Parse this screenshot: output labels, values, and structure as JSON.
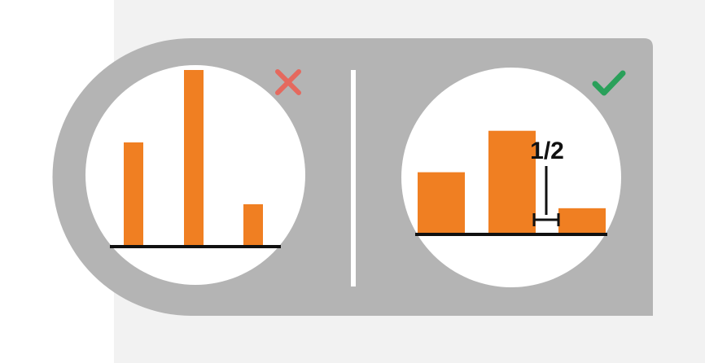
{
  "colors": {
    "background": "#ffffff",
    "backdrop": "#f2f2f2",
    "panel": "#b4b4b4",
    "circle": "#ffffff",
    "bar": "#f07f22",
    "axis": "#111111",
    "divider": "#ffffff",
    "bad_mark": "#e5695e",
    "good_mark": "#2aa05a",
    "label": "#111111"
  },
  "left_example": {
    "icon": "cross-icon",
    "verdict": "incorrect",
    "bars": [
      0.59,
      1.0,
      0.24
    ]
  },
  "right_example": {
    "icon": "check-icon",
    "verdict": "correct",
    "bars": [
      0.57,
      0.95,
      0.24
    ],
    "gap_label": "1/2"
  }
}
